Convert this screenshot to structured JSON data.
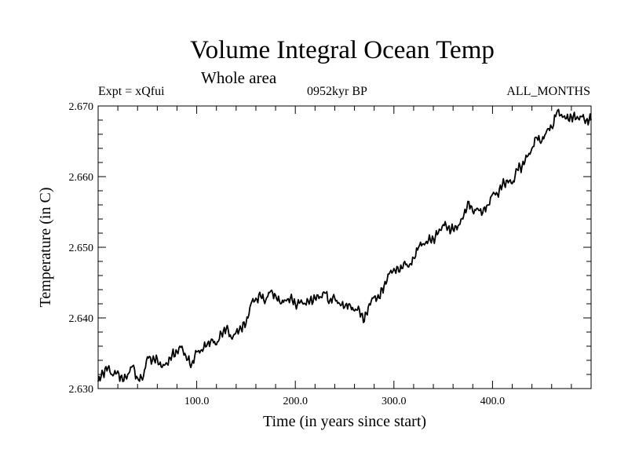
{
  "chart_data": {
    "type": "line",
    "title": "Volume Integral Ocean Temp",
    "subtitle": "Whole area",
    "header_left": "Expt = xQfui",
    "header_center": "0952kyr BP",
    "header_right": "ALL_MONTHS",
    "xlabel": "Time (in years since start)",
    "ylabel": "Temperature (in C)",
    "xlim": [
      0,
      500
    ],
    "ylim": [
      2.63,
      2.67
    ],
    "x_ticks": [
      {
        "value": 100,
        "label": "100.0"
      },
      {
        "value": 200,
        "label": "200.0"
      },
      {
        "value": 300,
        "label": "300.0"
      },
      {
        "value": 400,
        "label": "400.0"
      }
    ],
    "y_ticks": [
      {
        "value": 2.63,
        "label": "2.630"
      },
      {
        "value": 2.64,
        "label": "2.640"
      },
      {
        "value": 2.65,
        "label": "2.650"
      },
      {
        "value": 2.66,
        "label": "2.660"
      },
      {
        "value": 2.67,
        "label": "2.670"
      }
    ],
    "series": [
      {
        "name": "Volume Integral Ocean Temp",
        "x": [
          0,
          5,
          10,
          15,
          20,
          25,
          30,
          35,
          40,
          45,
          50,
          55,
          60,
          65,
          70,
          75,
          80,
          85,
          90,
          95,
          100,
          105,
          110,
          115,
          120,
          125,
          130,
          135,
          140,
          145,
          150,
          155,
          160,
          165,
          170,
          175,
          180,
          185,
          190,
          195,
          200,
          205,
          210,
          215,
          220,
          225,
          230,
          235,
          240,
          245,
          250,
          255,
          260,
          265,
          270,
          275,
          280,
          285,
          290,
          295,
          300,
          305,
          310,
          315,
          320,
          325,
          330,
          335,
          340,
          345,
          350,
          355,
          360,
          365,
          370,
          375,
          380,
          385,
          390,
          395,
          400,
          405,
          410,
          415,
          420,
          425,
          430,
          435,
          440,
          445,
          450,
          455,
          460,
          465,
          470,
          475,
          480,
          485,
          490,
          495,
          500
        ],
        "y": [
          2.631,
          2.6322,
          2.633,
          2.6318,
          2.6325,
          2.631,
          2.632,
          2.6332,
          2.6315,
          2.6312,
          2.6345,
          2.634,
          2.6342,
          2.633,
          2.6335,
          2.6348,
          2.6352,
          2.636,
          2.634,
          2.6335,
          2.6352,
          2.6355,
          2.636,
          2.637,
          2.6362,
          2.6378,
          2.6385,
          2.6372,
          2.638,
          2.6385,
          2.6392,
          2.642,
          2.6428,
          2.643,
          2.6425,
          2.6438,
          2.6432,
          2.642,
          2.6425,
          2.6428,
          2.642,
          2.6422,
          2.642,
          2.6425,
          2.6428,
          2.643,
          2.6435,
          2.6425,
          2.6428,
          2.642,
          2.6415,
          2.642,
          2.641,
          2.6412,
          2.6395,
          2.642,
          2.643,
          2.6428,
          2.6445,
          2.6462,
          2.647,
          2.6465,
          2.6478,
          2.6472,
          2.6485,
          2.65,
          2.6505,
          2.651,
          2.6512,
          2.652,
          2.6532,
          2.6528,
          2.6525,
          2.653,
          2.654,
          2.6565,
          2.655,
          2.6555,
          2.6548,
          2.656,
          2.6575,
          2.6575,
          2.6588,
          2.6595,
          2.659,
          2.661,
          2.6615,
          2.6628,
          2.664,
          2.6655,
          2.665,
          2.6665,
          2.667,
          2.669,
          2.6688,
          2.6682,
          2.6685,
          2.6682,
          2.6685,
          2.668,
          2.668
        ]
      }
    ]
  }
}
